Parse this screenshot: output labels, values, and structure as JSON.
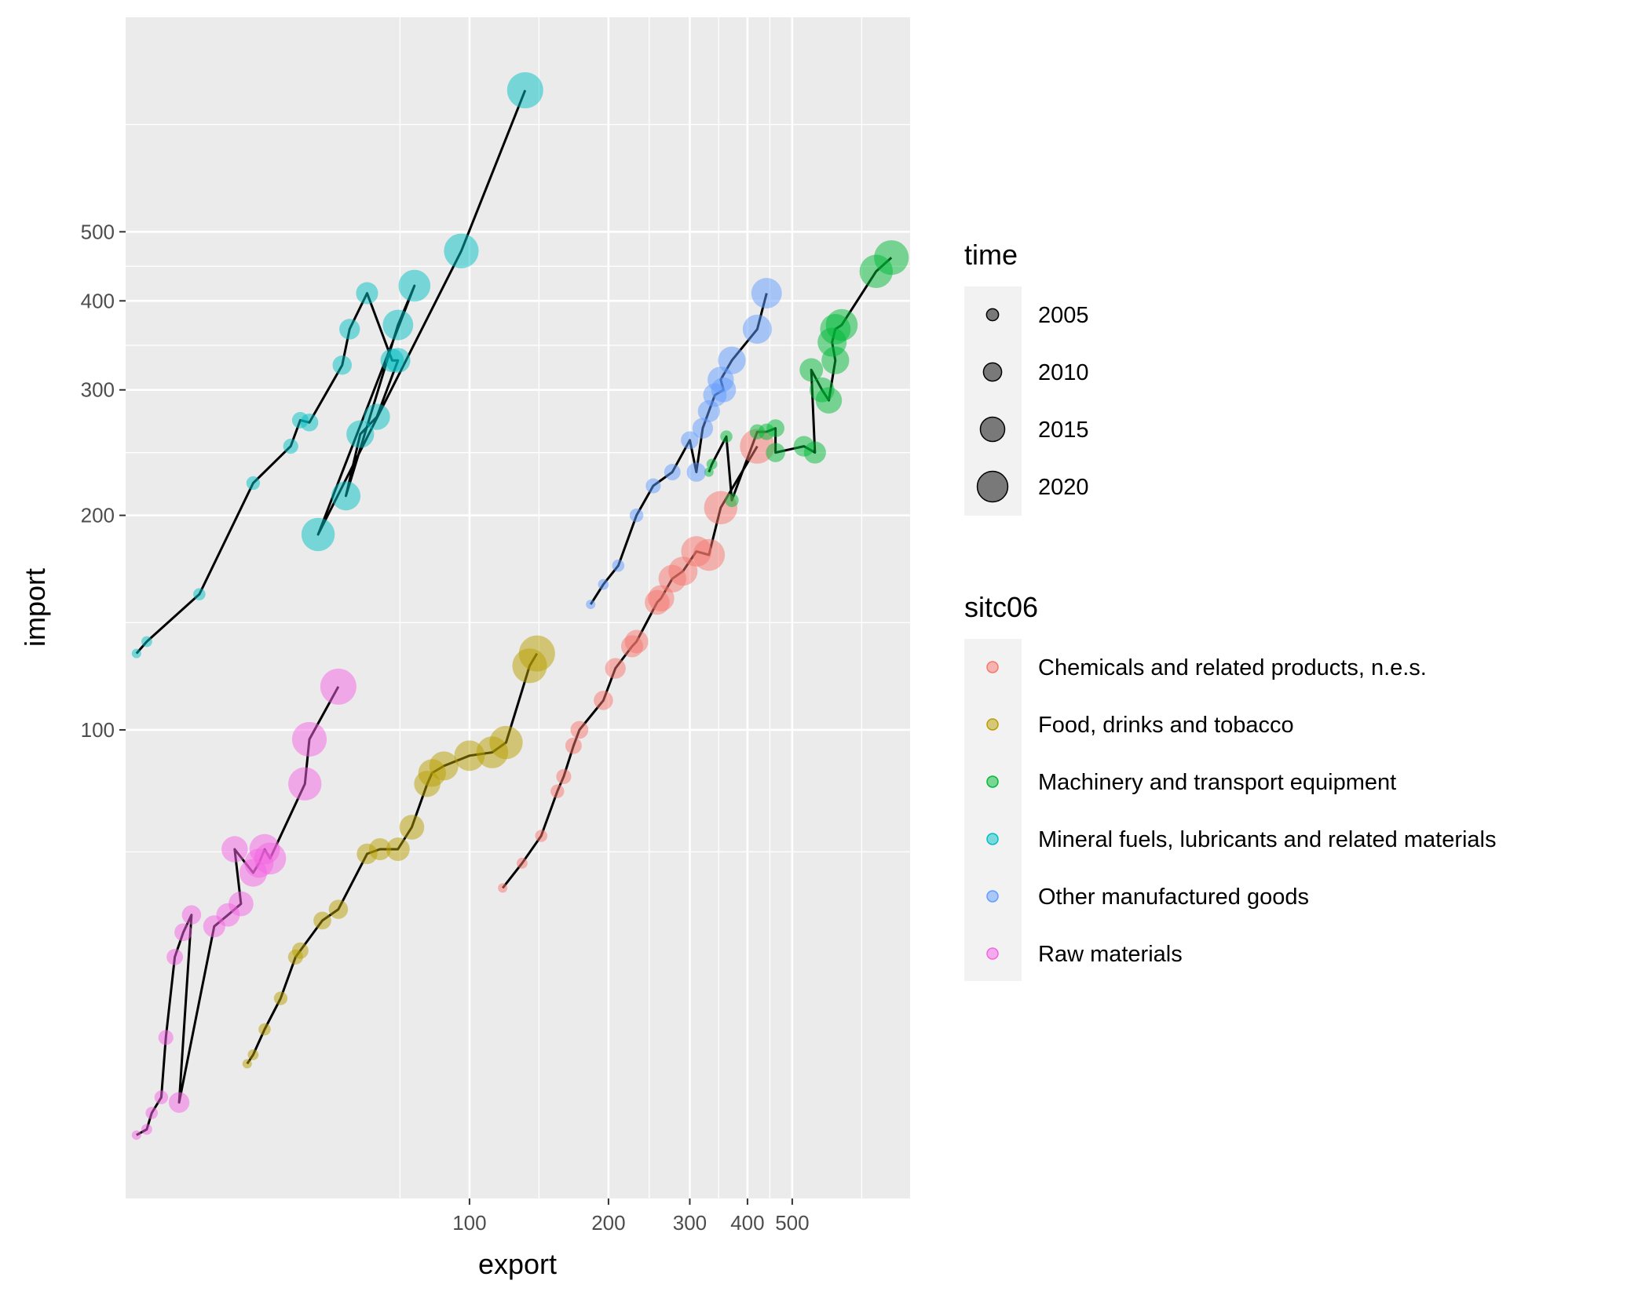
{
  "chart_data": {
    "type": "scatter",
    "variant": "bubble-path",
    "xlabel": "export",
    "ylabel": "import",
    "x_scale": "log10",
    "y_scale": "log10",
    "xlim": [
      18,
      900
    ],
    "ylim": [
      22,
      1000
    ],
    "x_ticks": [
      100,
      200,
      300,
      400,
      500
    ],
    "x_tick_labels": [
      "100",
      "200",
      "300",
      "400",
      "500"
    ],
    "y_ticks": [
      100,
      200,
      300,
      400,
      500
    ],
    "y_tick_labels": [
      "100",
      "200",
      "300",
      "400",
      "500"
    ],
    "grid": true,
    "legend_position": "right",
    "size_legend": {
      "title": "time",
      "entries": [
        {
          "label": "2005",
          "value": 2005
        },
        {
          "label": "2010",
          "value": 2010
        },
        {
          "label": "2015",
          "value": 2015
        },
        {
          "label": "2020",
          "value": 2020
        }
      ]
    },
    "color_legend": {
      "title": "sitc06",
      "entries": [
        {
          "label": "Chemicals and related products, n.e.s.",
          "color": "#F8766D"
        },
        {
          "label": "Food, drinks and tobacco",
          "color": "#B79F00"
        },
        {
          "label": "Machinery and transport equipment",
          "color": "#00BA38"
        },
        {
          "label": "Mineral fuels, lubricants and related materials",
          "color": "#00BFC4"
        },
        {
          "label": "Other manufactured goods",
          "color": "#619CFF"
        },
        {
          "label": "Raw materials",
          "color": "#F564E3"
        }
      ]
    },
    "series": [
      {
        "name": "Chemicals and related products, n.e.s.",
        "color": "#F8766D",
        "points": [
          {
            "time": 2002,
            "x": 118,
            "y": 60
          },
          {
            "time": 2003,
            "x": 130,
            "y": 65
          },
          {
            "time": 2004,
            "x": 143,
            "y": 71
          },
          {
            "time": 2005,
            "x": 155,
            "y": 82
          },
          {
            "time": 2006,
            "x": 160,
            "y": 86
          },
          {
            "time": 2007,
            "x": 168,
            "y": 95
          },
          {
            "time": 2008,
            "x": 173,
            "y": 100
          },
          {
            "time": 2009,
            "x": 195,
            "y": 110
          },
          {
            "time": 2010,
            "x": 207,
            "y": 122
          },
          {
            "time": 2011,
            "x": 225,
            "y": 131
          },
          {
            "time": 2012,
            "x": 230,
            "y": 133
          },
          {
            "time": 2013,
            "x": 255,
            "y": 151
          },
          {
            "time": 2014,
            "x": 260,
            "y": 153
          },
          {
            "time": 2015,
            "x": 275,
            "y": 163
          },
          {
            "time": 2016,
            "x": 290,
            "y": 167
          },
          {
            "time": 2017,
            "x": 310,
            "y": 178
          },
          {
            "time": 2018,
            "x": 330,
            "y": 176
          },
          {
            "time": 2019,
            "x": 350,
            "y": 205
          },
          {
            "time": 2020,
            "x": 420,
            "y": 250
          }
        ]
      },
      {
        "name": "Food, drinks and tobacco",
        "color": "#B79F00",
        "points": [
          {
            "time": 2002,
            "x": 33,
            "y": 34
          },
          {
            "time": 2003,
            "x": 34,
            "y": 35
          },
          {
            "time": 2004,
            "x": 36,
            "y": 38
          },
          {
            "time": 2005,
            "x": 39,
            "y": 42
          },
          {
            "time": 2006,
            "x": 42,
            "y": 48
          },
          {
            "time": 2007,
            "x": 43,
            "y": 49
          },
          {
            "time": 2008,
            "x": 48,
            "y": 54
          },
          {
            "time": 2009,
            "x": 52,
            "y": 56
          },
          {
            "time": 2010,
            "x": 60,
            "y": 67
          },
          {
            "time": 2011,
            "x": 64,
            "y": 68
          },
          {
            "time": 2012,
            "x": 70,
            "y": 68
          },
          {
            "time": 2013,
            "x": 75,
            "y": 73
          },
          {
            "time": 2014,
            "x": 81,
            "y": 84
          },
          {
            "time": 2015,
            "x": 83,
            "y": 87
          },
          {
            "time": 2016,
            "x": 88,
            "y": 89
          },
          {
            "time": 2017,
            "x": 100,
            "y": 92
          },
          {
            "time": 2018,
            "x": 112,
            "y": 93
          },
          {
            "time": 2019,
            "x": 120,
            "y": 96
          },
          {
            "time": 2020,
            "x": 135,
            "y": 123
          },
          {
            "time": 2021,
            "x": 140,
            "y": 128
          }
        ]
      },
      {
        "name": "Machinery and transport equipment",
        "color": "#00BA38",
        "points": [
          {
            "time": 2002,
            "x": 330,
            "y": 230
          },
          {
            "time": 2003,
            "x": 335,
            "y": 236
          },
          {
            "time": 2004,
            "x": 360,
            "y": 258
          },
          {
            "time": 2005,
            "x": 370,
            "y": 210
          },
          {
            "time": 2006,
            "x": 420,
            "y": 262
          },
          {
            "time": 2007,
            "x": 440,
            "y": 262
          },
          {
            "time": 2008,
            "x": 460,
            "y": 265
          },
          {
            "time": 2009,
            "x": 460,
            "y": 245
          },
          {
            "time": 2010,
            "x": 530,
            "y": 250
          },
          {
            "time": 2011,
            "x": 560,
            "y": 245
          },
          {
            "time": 2012,
            "x": 550,
            "y": 320
          },
          {
            "time": 2013,
            "x": 580,
            "y": 300
          },
          {
            "time": 2014,
            "x": 600,
            "y": 290
          },
          {
            "time": 2015,
            "x": 620,
            "y": 330
          },
          {
            "time": 2016,
            "x": 610,
            "y": 350
          },
          {
            "time": 2017,
            "x": 620,
            "y": 365
          },
          {
            "time": 2018,
            "x": 640,
            "y": 370
          },
          {
            "time": 2019,
            "x": 760,
            "y": 440
          },
          {
            "time": 2020,
            "x": 820,
            "y": 460
          }
        ]
      },
      {
        "name": "Mineral fuels, lubricants and related materials",
        "color": "#00BFC4",
        "points": [
          {
            "time": 2002,
            "x": 19,
            "y": 128
          },
          {
            "time": 2003,
            "x": 20,
            "y": 133
          },
          {
            "time": 2004,
            "x": 26,
            "y": 155
          },
          {
            "time": 2005,
            "x": 34,
            "y": 222
          },
          {
            "time": 2006,
            "x": 41,
            "y": 250
          },
          {
            "time": 2007,
            "x": 43,
            "y": 272
          },
          {
            "time": 2008,
            "x": 45,
            "y": 270
          },
          {
            "time": 2009,
            "x": 53,
            "y": 325
          },
          {
            "time": 2010,
            "x": 55,
            "y": 365
          },
          {
            "time": 2011,
            "x": 60,
            "y": 410
          },
          {
            "time": 2012,
            "x": 68,
            "y": 330
          },
          {
            "time": 2013,
            "x": 70,
            "y": 330
          },
          {
            "time": 2014,
            "x": 63,
            "y": 275
          },
          {
            "time": 2015,
            "x": 58,
            "y": 260
          },
          {
            "time": 2016,
            "x": 54,
            "y": 213
          },
          {
            "time": 2017,
            "x": 70,
            "y": 370
          },
          {
            "time": 2018,
            "x": 76,
            "y": 420
          },
          {
            "time": 2019,
            "x": 47,
            "y": 188
          },
          {
            "time": 2020,
            "x": 96,
            "y": 470
          },
          {
            "time": 2021,
            "x": 132,
            "y": 790
          }
        ]
      },
      {
        "name": "Other manufactured goods",
        "color": "#619CFF",
        "points": [
          {
            "time": 2002,
            "x": 183,
            "y": 150
          },
          {
            "time": 2003,
            "x": 195,
            "y": 160
          },
          {
            "time": 2004,
            "x": 210,
            "y": 170
          },
          {
            "time": 2005,
            "x": 230,
            "y": 200
          },
          {
            "time": 2006,
            "x": 250,
            "y": 220
          },
          {
            "time": 2007,
            "x": 275,
            "y": 230
          },
          {
            "time": 2008,
            "x": 300,
            "y": 255
          },
          {
            "time": 2009,
            "x": 310,
            "y": 230
          },
          {
            "time": 2010,
            "x": 320,
            "y": 265
          },
          {
            "time": 2011,
            "x": 330,
            "y": 280
          },
          {
            "time": 2012,
            "x": 340,
            "y": 295
          },
          {
            "time": 2013,
            "x": 355,
            "y": 300
          },
          {
            "time": 2014,
            "x": 350,
            "y": 310
          },
          {
            "time": 2015,
            "x": 370,
            "y": 330
          },
          {
            "time": 2016,
            "x": 420,
            "y": 365
          },
          {
            "time": 2017,
            "x": 440,
            "y": 410
          }
        ]
      },
      {
        "name": "Raw materials",
        "color": "#F564E3",
        "points": [
          {
            "time": 2002,
            "x": 19,
            "y": 27
          },
          {
            "time": 2003,
            "x": 20,
            "y": 27.5
          },
          {
            "time": 2004,
            "x": 20.5,
            "y": 29
          },
          {
            "time": 2005,
            "x": 21.5,
            "y": 30.5
          },
          {
            "time": 2006,
            "x": 22,
            "y": 37
          },
          {
            "time": 2007,
            "x": 23,
            "y": 48
          },
          {
            "time": 2008,
            "x": 24,
            "y": 52
          },
          {
            "time": 2009,
            "x": 25,
            "y": 55
          },
          {
            "time": 2010,
            "x": 23.5,
            "y": 30
          },
          {
            "time": 2011,
            "x": 28,
            "y": 53
          },
          {
            "time": 2012,
            "x": 30,
            "y": 55
          },
          {
            "time": 2013,
            "x": 32,
            "y": 57
          },
          {
            "time": 2014,
            "x": 31,
            "y": 68
          },
          {
            "time": 2015,
            "x": 34,
            "y": 63
          },
          {
            "time": 2016,
            "x": 35,
            "y": 65
          },
          {
            "time": 2017,
            "x": 36,
            "y": 68
          },
          {
            "time": 2018,
            "x": 37,
            "y": 66
          },
          {
            "time": 2019,
            "x": 44,
            "y": 84
          },
          {
            "time": 2020,
            "x": 45,
            "y": 97
          },
          {
            "time": 2021,
            "x": 52,
            "y": 115
          }
        ]
      }
    ]
  }
}
